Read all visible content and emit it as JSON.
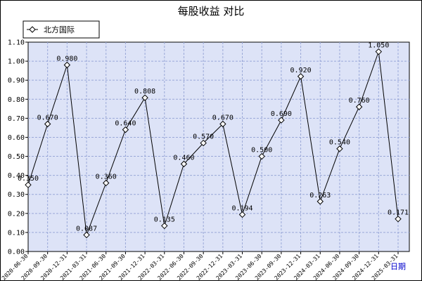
{
  "chart_data": {
    "type": "line",
    "title": "每股收益  对比",
    "xlabel": "日期",
    "ylabel": "",
    "ylim": [
      0,
      1.1
    ],
    "yticks": [
      "0.00",
      "0.10",
      "0.20",
      "0.30",
      "0.40",
      "0.50",
      "0.60",
      "0.70",
      "0.80",
      "0.90",
      "1.00",
      "1.10"
    ],
    "grid": true,
    "legend_position": "top-left",
    "categories": [
      "2020-06-30",
      "2020-09-30",
      "2020-12-31",
      "2021-03-31",
      "2021-06-30",
      "2021-09-30",
      "2021-12-31",
      "2022-03-31",
      "2022-06-30",
      "2022-09-30",
      "2022-12-31",
      "2023-03-31",
      "2023-06-30",
      "2023-09-30",
      "2023-12-31",
      "2024-03-31",
      "2024-06-30",
      "2024-09-30",
      "2024-12-31",
      "2025-03-31"
    ],
    "series": [
      {
        "name": "北方国际",
        "values": [
          0.35,
          0.67,
          0.98,
          0.087,
          0.36,
          0.64,
          0.808,
          0.135,
          0.46,
          0.57,
          0.67,
          0.194,
          0.5,
          0.69,
          0.92,
          0.263,
          0.54,
          0.76,
          1.05,
          0.171
        ],
        "labels": [
          "0.350",
          "0.670",
          "0.980",
          "0.087",
          "0.360",
          "0.640",
          "0.808",
          "0.135",
          "0.460",
          "0.570",
          "0.670",
          "0.194",
          "0.500",
          "0.690",
          "0.920",
          "0.263",
          "0.540",
          "0.760",
          "1.050",
          "0.171"
        ]
      }
    ],
    "colors": {
      "plot_background": "#dde3f7",
      "grid": "#9aa8d8",
      "line": "#000000",
      "marker_fill": "#ffffff"
    }
  }
}
